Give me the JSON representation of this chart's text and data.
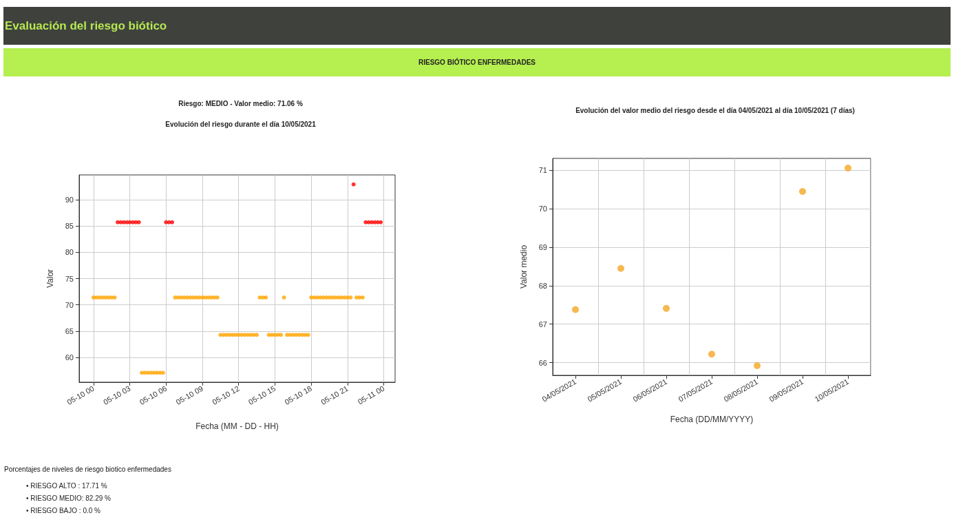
{
  "chart_data": [
    {
      "type": "other",
      "title": "Evaluación del riesgo biótico",
      "subtitle": "RIESGO BIÓTICO ENFERMEDADES"
    },
    {
      "type": "scatter",
      "title": "Evolución del riesgo durante el día 10/05/2021",
      "subtitle": "Riesgo: MEDIO - Valor medio: 71.06 %",
      "xlabel": "Fecha (MM - DD - HH)",
      "ylabel": "Valor",
      "xlim": [
        "2021-05-09T22:49",
        "2021-05-11T00:56"
      ],
      "xticks": [
        {
          "value": "2021-05-10T00:00",
          "label": "05-10 00"
        },
        {
          "value": "2021-05-10T03:00",
          "label": "05-10 03"
        },
        {
          "value": "2021-05-10T06:00",
          "label": "05-10 06"
        },
        {
          "value": "2021-05-10T09:00",
          "label": "05-10 09"
        },
        {
          "value": "2021-05-10T12:00",
          "label": "05-10 12"
        },
        {
          "value": "2021-05-10T15:00",
          "label": "05-10 15"
        },
        {
          "value": "2021-05-10T18:00",
          "label": "05-10 18"
        },
        {
          "value": "2021-05-10T21:00",
          "label": "05-10 21"
        },
        {
          "value": "2021-05-11T00:00",
          "label": "05-11 00"
        }
      ],
      "ylim": [
        55.3,
        94.7
      ],
      "yticks": [
        60,
        65,
        70,
        75,
        80,
        85,
        90
      ],
      "grid": true,
      "marker": "circle",
      "series": [
        {
          "color": "#ffa500",
          "x": [
            "2021-05-10T00:00",
            "2021-05-10T00:15",
            "2021-05-10T00:30",
            "2021-05-10T00:45",
            "2021-05-10T01:00",
            "2021-05-10T01:15",
            "2021-05-10T01:30",
            "2021-05-10T01:45",
            "2021-05-10T04:00",
            "2021-05-10T04:15",
            "2021-05-10T04:30",
            "2021-05-10T04:45",
            "2021-05-10T05:00",
            "2021-05-10T05:15",
            "2021-05-10T05:30",
            "2021-05-10T05:45",
            "2021-05-10T06:45",
            "2021-05-10T07:00",
            "2021-05-10T07:15",
            "2021-05-10T07:30",
            "2021-05-10T07:45",
            "2021-05-10T08:00",
            "2021-05-10T08:15",
            "2021-05-10T08:30",
            "2021-05-10T08:45",
            "2021-05-10T09:00",
            "2021-05-10T09:15",
            "2021-05-10T09:30",
            "2021-05-10T09:45",
            "2021-05-10T10:00",
            "2021-05-10T10:15",
            "2021-05-10T10:30",
            "2021-05-10T10:45",
            "2021-05-10T11:00",
            "2021-05-10T11:15",
            "2021-05-10T11:30",
            "2021-05-10T11:45",
            "2021-05-10T12:00",
            "2021-05-10T12:15",
            "2021-05-10T12:30",
            "2021-05-10T12:45",
            "2021-05-10T13:00",
            "2021-05-10T13:15",
            "2021-05-10T13:30",
            "2021-05-10T13:45",
            "2021-05-10T14:00",
            "2021-05-10T14:15",
            "2021-05-10T14:30",
            "2021-05-10T14:45",
            "2021-05-10T15:00",
            "2021-05-10T15:15",
            "2021-05-10T15:30",
            "2021-05-10T15:45",
            "2021-05-10T16:00",
            "2021-05-10T16:15",
            "2021-05-10T16:30",
            "2021-05-10T16:45",
            "2021-05-10T17:00",
            "2021-05-10T17:15",
            "2021-05-10T17:30",
            "2021-05-10T17:45",
            "2021-05-10T18:00",
            "2021-05-10T18:15",
            "2021-05-10T18:30",
            "2021-05-10T18:45",
            "2021-05-10T19:00",
            "2021-05-10T19:15",
            "2021-05-10T19:30",
            "2021-05-10T19:45",
            "2021-05-10T20:00",
            "2021-05-10T20:15",
            "2021-05-10T20:30",
            "2021-05-10T20:45",
            "2021-05-10T21:00",
            "2021-05-10T21:15",
            "2021-05-10T21:45",
            "2021-05-10T22:00",
            "2021-05-10T22:15"
          ],
          "values": [
            71.4,
            71.4,
            71.4,
            71.4,
            71.4,
            71.4,
            71.4,
            71.4,
            57.1,
            57.1,
            57.1,
            57.1,
            57.1,
            57.1,
            57.1,
            57.1,
            71.4,
            71.4,
            71.4,
            71.4,
            71.4,
            71.4,
            71.4,
            71.4,
            71.4,
            71.4,
            71.4,
            71.4,
            71.4,
            71.4,
            71.4,
            64.3,
            64.3,
            64.3,
            64.3,
            64.3,
            64.3,
            64.3,
            64.3,
            64.3,
            64.3,
            64.3,
            64.3,
            64.3,
            71.4,
            71.4,
            71.4,
            64.3,
            64.3,
            64.3,
            64.3,
            64.3,
            71.4,
            64.3,
            64.3,
            64.3,
            64.3,
            64.3,
            64.3,
            64.3,
            64.3,
            71.4,
            71.4,
            71.4,
            71.4,
            71.4,
            71.4,
            71.4,
            71.4,
            71.4,
            71.4,
            71.4,
            71.4,
            71.4,
            71.4,
            71.4,
            71.4,
            71.4
          ]
        },
        {
          "color": "#ff0000",
          "x": [
            "2021-05-10T02:00",
            "2021-05-10T02:15",
            "2021-05-10T02:30",
            "2021-05-10T02:45",
            "2021-05-10T03:00",
            "2021-05-10T03:15",
            "2021-05-10T03:30",
            "2021-05-10T03:45",
            "2021-05-10T06:00",
            "2021-05-10T06:15",
            "2021-05-10T06:30",
            "2021-05-10T21:30",
            "2021-05-10T22:30",
            "2021-05-10T22:45",
            "2021-05-10T23:00",
            "2021-05-10T23:15",
            "2021-05-10T23:30",
            "2021-05-10T23:45"
          ],
          "values": [
            85.7,
            85.7,
            85.7,
            85.7,
            85.7,
            85.7,
            85.7,
            85.7,
            85.7,
            85.7,
            85.7,
            92.9,
            85.7,
            85.7,
            85.7,
            85.7,
            85.7,
            85.7
          ]
        }
      ]
    },
    {
      "type": "scatter",
      "title": "Evolución del valor medio del riesgo desde el día 04/05/2021 al día 10/05/2021 (7 días)",
      "xlabel": "Fecha (DD/MM/YYYY)",
      "ylabel": "Valor medio",
      "categories": [
        "04/05/2021",
        "05/05/2021",
        "06/05/2021",
        "07/05/2021",
        "08/05/2021",
        "09/05/2021",
        "10/05/2021"
      ],
      "ylim": [
        65.67,
        71.31
      ],
      "yticks": [
        66,
        67,
        68,
        69,
        70,
        71
      ],
      "grid": true,
      "marker": "circle",
      "series": [
        {
          "color": "#f5a623",
          "values": [
            67.38,
            68.45,
            67.41,
            66.22,
            65.92,
            70.45,
            71.06
          ]
        }
      ]
    },
    {
      "type": "other",
      "title": "Porcentajes de niveles de riesgo biotico enfermedades",
      "annotations": [
        "• RIESGO ALTO : 17.71 %",
        "• RIESGO MEDIO: 82.29 %",
        "• RIESGO BAJO : 0.0 %"
      ]
    }
  ]
}
